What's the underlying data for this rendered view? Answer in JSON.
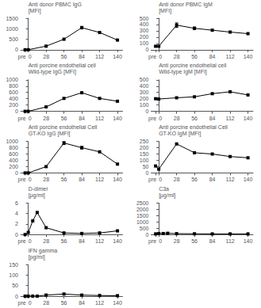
{
  "chart_data": [
    {
      "type": "line",
      "y_label": "Anti donor PBMC IgG\n[MFI]",
      "x": [
        -5,
        0,
        28,
        56,
        84,
        112,
        140
      ],
      "values": [
        0,
        0,
        170,
        500,
        1050,
        820,
        460
      ],
      "errors": [
        null,
        null,
        null,
        null,
        60,
        null,
        null
      ],
      "xlim": [
        -12,
        148
      ],
      "xticks": [
        {
          "value": -5,
          "label": "pre"
        },
        0,
        28,
        56,
        84,
        112,
        140
      ],
      "ylim": [
        0,
        1500
      ],
      "yticks": [
        0,
        500,
        1000,
        1500
      ],
      "color": "black",
      "marker": "square",
      "grid": false
    },
    {
      "type": "line",
      "y_label": "Anti donor PBMC IgM\n[MFI]",
      "x": [
        -5,
        0,
        28,
        56,
        84,
        112,
        140
      ],
      "values": [
        55,
        55,
        390,
        340,
        310,
        280,
        255
      ],
      "errors": [
        null,
        null,
        35,
        20,
        null,
        null,
        null
      ],
      "xlim": [
        -12,
        148
      ],
      "xticks": [
        {
          "value": -5,
          "label": "pre"
        },
        0,
        28,
        56,
        84,
        112,
        140
      ],
      "ylim": [
        0,
        500
      ],
      "yticks": [
        0,
        100,
        200,
        300,
        400,
        500
      ],
      "color": "black",
      "marker": "square",
      "grid": false
    },
    {
      "type": "line",
      "y_label": "Anti porcine endothelial cell\nWild-type IgG [MFI]",
      "x": [
        -5,
        0,
        28,
        56,
        84,
        112,
        140
      ],
      "values": [
        0,
        0,
        140,
        410,
        590,
        410,
        320
      ],
      "errors": [
        null,
        null,
        null,
        null,
        null,
        null,
        null
      ],
      "xlim": [
        -12,
        148
      ],
      "xticks": [
        {
          "value": -5,
          "label": "pre"
        },
        0,
        28,
        56,
        84,
        112,
        140
      ],
      "ylim": [
        0,
        1000
      ],
      "yticks": [
        0,
        200,
        400,
        600,
        800,
        1000
      ],
      "color": "black",
      "marker": "square",
      "grid": false
    },
    {
      "type": "line",
      "y_label": "Anti porcine endothelial cell\nWild-type IgM [MFI]",
      "x": [
        -5,
        0,
        28,
        56,
        84,
        112,
        140
      ],
      "values": [
        200,
        195,
        215,
        230,
        280,
        310,
        260
      ],
      "errors": [
        null,
        null,
        null,
        null,
        null,
        null,
        null
      ],
      "xlim": [
        -12,
        148
      ],
      "xticks": [
        {
          "value": -5,
          "label": "pre"
        },
        0,
        28,
        56,
        84,
        112,
        140
      ],
      "ylim": [
        0,
        500
      ],
      "yticks": [
        0,
        100,
        200,
        300,
        400,
        500
      ],
      "color": "black",
      "marker": "square",
      "grid": false
    },
    {
      "type": "line",
      "y_label": "Anti porcine endothelial Cell\nGT-KO IgG [MFI]",
      "x": [
        -5,
        0,
        28,
        56,
        84,
        112,
        140
      ],
      "values": [
        0,
        0,
        200,
        950,
        800,
        670,
        280
      ],
      "errors": [
        null,
        null,
        null,
        50,
        40,
        null,
        null
      ],
      "xlim": [
        -12,
        148
      ],
      "xticks": [
        {
          "value": -5,
          "label": "pre"
        },
        0,
        28,
        56,
        84,
        112,
        140
      ],
      "ylim": [
        0,
        1000
      ],
      "yticks": [
        0,
        200,
        400,
        600,
        800,
        1000
      ],
      "color": "black",
      "marker": "square",
      "grid": false
    },
    {
      "type": "line",
      "y_label": "Anti porcine endothelial Cell\nGT-KO IgM [MFI]",
      "x": [
        -5,
        0,
        28,
        56,
        84,
        112,
        140
      ],
      "values": [
        55,
        30,
        230,
        160,
        150,
        130,
        120
      ],
      "errors": [
        null,
        null,
        null,
        null,
        null,
        null,
        null
      ],
      "xlim": [
        -12,
        148
      ],
      "xticks": [
        {
          "value": -5,
          "label": "pre"
        },
        0,
        28,
        56,
        84,
        112,
        140
      ],
      "ylim": [
        0,
        250
      ],
      "yticks": [
        0,
        50,
        100,
        150,
        200,
        250
      ],
      "color": "black",
      "marker": "square",
      "grid": false
    },
    {
      "type": "line",
      "y_label": "D-dimer\n[μg/ml]",
      "x": [
        -5,
        0,
        7,
        14,
        28,
        56,
        84,
        112,
        140
      ],
      "values": [
        0,
        0.4,
        2.6,
        4.2,
        1.3,
        0.3,
        0.2,
        0.3,
        0.7
      ],
      "errors": [
        null,
        null,
        null,
        null,
        null,
        null,
        null,
        null,
        null
      ],
      "xlim": [
        -12,
        148
      ],
      "xticks": [
        {
          "value": -5,
          "label": "pre"
        },
        0,
        28,
        56,
        84,
        112,
        140
      ],
      "ylim": [
        0,
        6
      ],
      "yticks": [
        0,
        2,
        4,
        6
      ],
      "color": "black",
      "marker": "square",
      "grid": false
    },
    {
      "type": "line",
      "y_label": "C3a\n[μg/ml]",
      "x": [
        -5,
        0,
        7,
        14,
        28,
        56,
        84,
        112,
        140
      ],
      "values": [
        50,
        80,
        80,
        100,
        70,
        60,
        50,
        50,
        50
      ],
      "errors": [
        null,
        null,
        null,
        null,
        null,
        null,
        null,
        null,
        null
      ],
      "xlim": [
        -12,
        148
      ],
      "xticks": [
        {
          "value": -5,
          "label": "pre"
        },
        0,
        28,
        56,
        84,
        112,
        140
      ],
      "ylim": [
        0,
        2500
      ],
      "yticks": [
        0,
        500,
        1000,
        1500,
        2000,
        2500
      ],
      "color": "black",
      "marker": "square",
      "grid": false
    },
    {
      "type": "line",
      "y_label": "IFN gamma\n[pg/ml]",
      "x": [
        -5,
        0,
        7,
        14,
        28,
        56,
        84,
        112,
        140
      ],
      "values": [
        0,
        0,
        0,
        0,
        5,
        10,
        5,
        3,
        2
      ],
      "errors": [
        null,
        null,
        null,
        null,
        null,
        null,
        null,
        null,
        null
      ],
      "xlim": [
        -12,
        148
      ],
      "xticks": [
        {
          "value": -5,
          "label": "pre"
        },
        0,
        28,
        56,
        84,
        112,
        140
      ],
      "ylim": [
        0,
        150
      ],
      "yticks": [
        0,
        50,
        100,
        150
      ],
      "color": "black",
      "marker": "square",
      "grid": false
    }
  ]
}
